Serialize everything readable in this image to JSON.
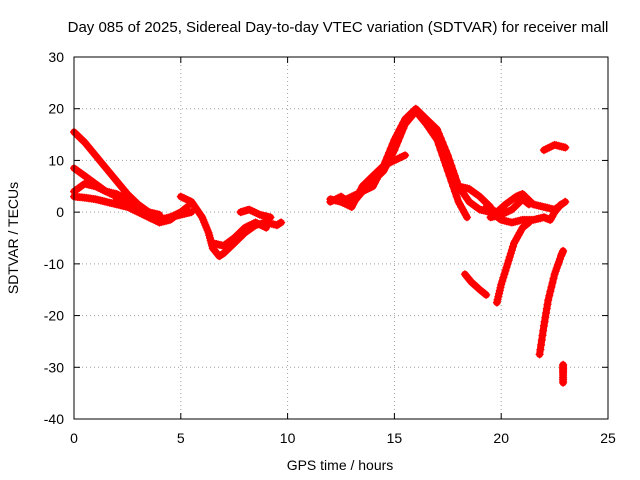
{
  "chart_data": {
    "type": "scatter",
    "title": "Day 085 of 2025, Sidereal Day-to-day VTEC variation (SDTVAR) for receiver mall",
    "xlabel": "GPS time / hours",
    "ylabel": "SDTVAR / TECUs",
    "xlim": [
      0,
      25
    ],
    "ylim": [
      -40,
      30
    ],
    "xticks": [
      0,
      5,
      10,
      15,
      20,
      25
    ],
    "yticks": [
      -40,
      -30,
      -20,
      -10,
      0,
      10,
      20,
      30
    ],
    "xtick_labels": [
      "0",
      "5",
      "10",
      "15",
      "20",
      "25"
    ],
    "ytick_labels": [
      "-40",
      "-30",
      "-20",
      "-10",
      "0",
      "10",
      "20",
      "30"
    ],
    "grid": true,
    "color": "#ff0000",
    "marker": "+",
    "series": [
      {
        "name": "s1",
        "points": [
          [
            0,
            15.5
          ],
          [
            0.5,
            13.5
          ],
          [
            1,
            11
          ],
          [
            1.5,
            8.5
          ],
          [
            2,
            6
          ],
          [
            2.5,
            3.5
          ],
          [
            3,
            1.5
          ],
          [
            3.5,
            0
          ],
          [
            4,
            -0.5
          ]
        ]
      },
      {
        "name": "s2",
        "points": [
          [
            0,
            8.5
          ],
          [
            0.5,
            7
          ],
          [
            1,
            5.5
          ],
          [
            1.5,
            4
          ],
          [
            2,
            3
          ],
          [
            2.5,
            2
          ],
          [
            3,
            1
          ],
          [
            3.5,
            0
          ]
        ]
      },
      {
        "name": "s3",
        "points": [
          [
            0,
            4
          ],
          [
            0.5,
            5.5
          ],
          [
            1,
            5
          ],
          [
            1.5,
            4
          ],
          [
            2,
            3.5
          ],
          [
            2.5,
            2.5
          ],
          [
            3,
            1
          ],
          [
            3.5,
            -0.5
          ],
          [
            4,
            -1.5
          ],
          [
            4.5,
            -1
          ],
          [
            5,
            0
          ],
          [
            5.3,
            1
          ]
        ]
      },
      {
        "name": "s4",
        "points": [
          [
            0,
            3
          ],
          [
            0.5,
            2.8
          ],
          [
            1,
            2.5
          ],
          [
            1.5,
            2
          ],
          [
            2,
            1.5
          ],
          [
            2.5,
            1
          ],
          [
            3,
            0
          ],
          [
            3.5,
            -1
          ],
          [
            4,
            -1.5
          ],
          [
            4.5,
            -1
          ],
          [
            5,
            -0.5
          ],
          [
            5.5,
            0
          ]
        ]
      },
      {
        "name": "s5",
        "points": [
          [
            2,
            2.5
          ],
          [
            2.5,
            1.5
          ],
          [
            3,
            0.5
          ],
          [
            3.5,
            -1
          ],
          [
            4,
            -2
          ],
          [
            4.5,
            -1.5
          ],
          [
            5,
            0
          ],
          [
            5.3,
            0.5
          ]
        ]
      },
      {
        "name": "s6",
        "points": [
          [
            5,
            3
          ],
          [
            5.5,
            2
          ],
          [
            6,
            -1
          ],
          [
            6.3,
            -4
          ],
          [
            6.5,
            -7
          ],
          [
            6.8,
            -8.5
          ],
          [
            7,
            -8
          ],
          [
            7.5,
            -6
          ],
          [
            8,
            -4
          ],
          [
            8.5,
            -2.5
          ],
          [
            9,
            -2
          ],
          [
            9.5,
            -2.5
          ]
        ]
      },
      {
        "name": "s7",
        "points": [
          [
            6.5,
            -6
          ],
          [
            7,
            -6.5
          ],
          [
            7.5,
            -5
          ],
          [
            8,
            -3
          ],
          [
            8.5,
            -2
          ],
          [
            9,
            -3
          ]
        ]
      },
      {
        "name": "s8",
        "points": [
          [
            7.8,
            0
          ],
          [
            8.2,
            0.5
          ],
          [
            8.7,
            -0.5
          ],
          [
            9.2,
            -1
          ]
        ]
      },
      {
        "name": "s9",
        "points": [
          [
            9.5,
            -2.5
          ],
          [
            9.7,
            -2
          ]
        ]
      },
      {
        "name": "s10",
        "points": [
          [
            12,
            2
          ],
          [
            12.5,
            3
          ],
          [
            13,
            1.5
          ],
          [
            13.5,
            4
          ],
          [
            14,
            5
          ],
          [
            14.5,
            9
          ],
          [
            15,
            14
          ],
          [
            15.5,
            18
          ],
          [
            16,
            20
          ],
          [
            16.5,
            18
          ],
          [
            17,
            16
          ],
          [
            17.5,
            11
          ],
          [
            18,
            5
          ],
          [
            18.5,
            2
          ],
          [
            19,
            0.5
          ],
          [
            19.5,
            0
          ]
        ]
      },
      {
        "name": "s11",
        "points": [
          [
            12,
            2.5
          ],
          [
            12.5,
            2
          ],
          [
            13,
            1
          ],
          [
            13.5,
            5
          ],
          [
            14,
            7
          ],
          [
            14.5,
            9
          ],
          [
            15,
            10
          ],
          [
            15.5,
            11
          ]
        ]
      },
      {
        "name": "s12",
        "points": [
          [
            12.5,
            2
          ],
          [
            13,
            3
          ],
          [
            13.5,
            4
          ],
          [
            14,
            6
          ],
          [
            14.5,
            8
          ],
          [
            15,
            12
          ],
          [
            15.5,
            17
          ],
          [
            16,
            19.5
          ],
          [
            16.5,
            17
          ],
          [
            17,
            14
          ],
          [
            17.5,
            8
          ],
          [
            18,
            2
          ],
          [
            18.4,
            -1
          ]
        ]
      },
      {
        "name": "s13",
        "points": [
          [
            18,
            5
          ],
          [
            18.5,
            4.5
          ],
          [
            19,
            3
          ],
          [
            19.5,
            1
          ]
        ]
      },
      {
        "name": "s14",
        "points": [
          [
            19.3,
            1
          ],
          [
            19.8,
            0
          ],
          [
            20.2,
            1.5
          ],
          [
            20.7,
            3
          ],
          [
            21,
            3.5
          ],
          [
            21.5,
            1.5
          ],
          [
            22,
            1
          ],
          [
            22.5,
            0.5
          ],
          [
            23,
            2
          ]
        ]
      },
      {
        "name": "s15",
        "points": [
          [
            19.5,
            -1
          ],
          [
            20,
            -0.5
          ],
          [
            20.5,
            0.5
          ],
          [
            21,
            2.5
          ],
          [
            21.3,
            1.5
          ]
        ]
      },
      {
        "name": "s16",
        "points": [
          [
            19.5,
            0
          ],
          [
            20,
            -1.5
          ],
          [
            20.5,
            -2
          ],
          [
            21,
            -1.5
          ],
          [
            21.5,
            -1.5
          ],
          [
            22,
            -1
          ],
          [
            22.3,
            -1.5
          ],
          [
            22.5,
            0
          ],
          [
            22.8,
            1.5
          ]
        ]
      },
      {
        "name": "s17",
        "points": [
          [
            18.3,
            -12
          ],
          [
            18.6,
            -13.5
          ],
          [
            19,
            -15
          ],
          [
            19.3,
            -16
          ]
        ]
      },
      {
        "name": "s18",
        "points": [
          [
            19.8,
            -17.5
          ],
          [
            20,
            -14
          ],
          [
            20.3,
            -10
          ],
          [
            20.6,
            -6
          ],
          [
            21,
            -3
          ],
          [
            21.3,
            -2
          ]
        ]
      },
      {
        "name": "s19",
        "points": [
          [
            21.8,
            -27.5
          ],
          [
            22,
            -22
          ],
          [
            22.2,
            -17
          ],
          [
            22.5,
            -12
          ],
          [
            22.8,
            -8.5
          ],
          [
            22.9,
            -7.5
          ]
        ]
      },
      {
        "name": "s20",
        "points": [
          [
            22,
            12
          ],
          [
            22.5,
            13
          ],
          [
            23,
            12.5
          ]
        ]
      },
      {
        "name": "s21",
        "points": [
          [
            22.9,
            -29.5
          ],
          [
            22.9,
            -31
          ],
          [
            22.9,
            -33
          ]
        ]
      }
    ]
  }
}
